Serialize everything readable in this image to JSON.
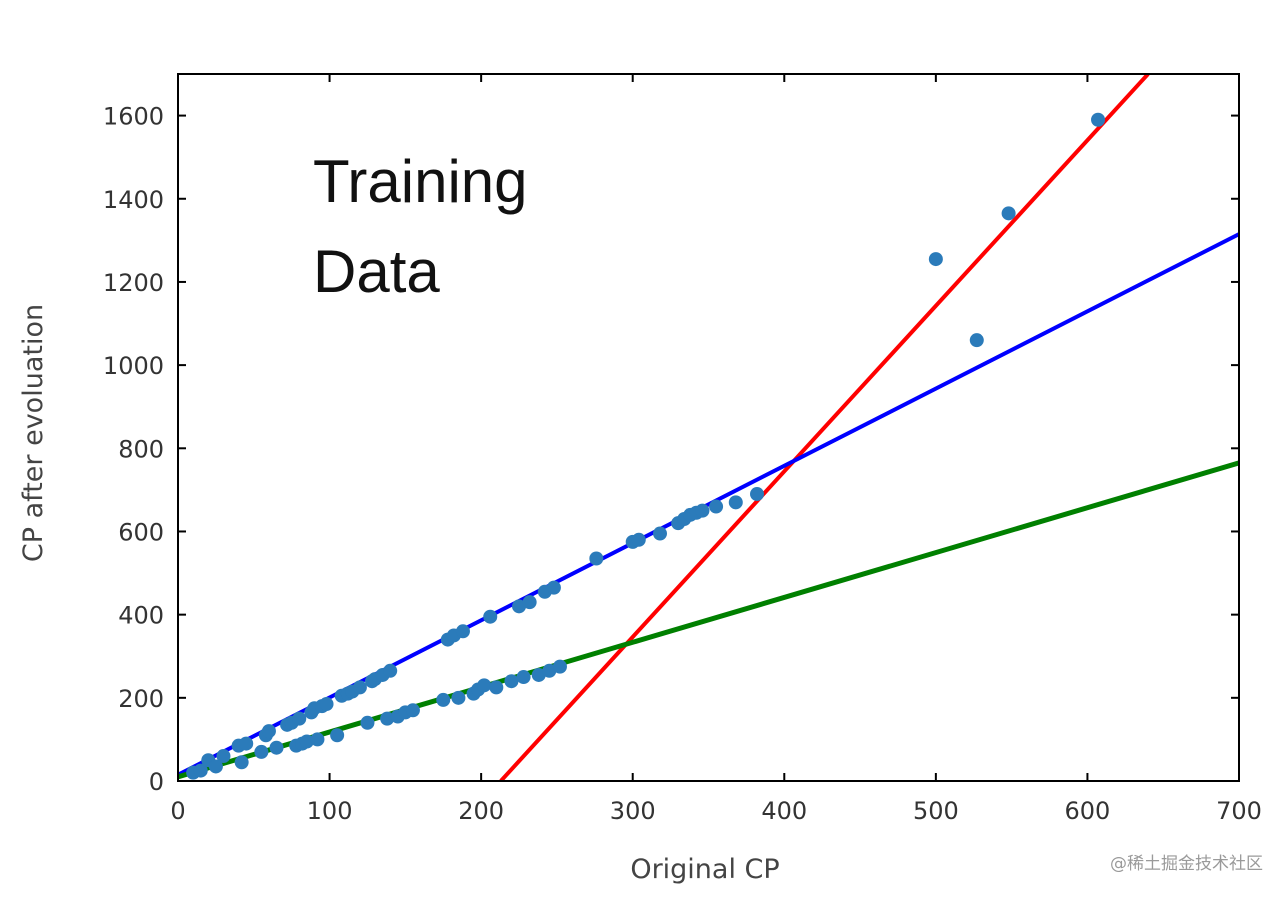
{
  "chart_data": {
    "type": "scatter",
    "title": "",
    "xlabel": "Original CP",
    "ylabel": "CP after evoluation",
    "xlim": [
      0,
      700
    ],
    "ylim": [
      0,
      1700
    ],
    "xticks": [
      0,
      100,
      200,
      300,
      400,
      500,
      600,
      700
    ],
    "yticks": [
      0,
      200,
      400,
      600,
      800,
      1000,
      1200,
      1400,
      1600
    ],
    "grid": false,
    "annotation": [
      "Training",
      "Data"
    ],
    "colors": {
      "points": "#2b7bba",
      "line_red": "#ff0000",
      "line_blue": "#0000ff",
      "line_green": "#008000"
    },
    "points": [
      {
        "x": 10,
        "y": 20
      },
      {
        "x": 15,
        "y": 25
      },
      {
        "x": 20,
        "y": 50
      },
      {
        "x": 25,
        "y": 35
      },
      {
        "x": 30,
        "y": 60
      },
      {
        "x": 40,
        "y": 85
      },
      {
        "x": 42,
        "y": 45
      },
      {
        "x": 45,
        "y": 90
      },
      {
        "x": 55,
        "y": 70
      },
      {
        "x": 58,
        "y": 110
      },
      {
        "x": 60,
        "y": 120
      },
      {
        "x": 65,
        "y": 80
      },
      {
        "x": 72,
        "y": 135
      },
      {
        "x": 75,
        "y": 140
      },
      {
        "x": 78,
        "y": 85
      },
      {
        "x": 80,
        "y": 150
      },
      {
        "x": 82,
        "y": 90
      },
      {
        "x": 85,
        "y": 95
      },
      {
        "x": 88,
        "y": 165
      },
      {
        "x": 90,
        "y": 175
      },
      {
        "x": 92,
        "y": 100
      },
      {
        "x": 95,
        "y": 180
      },
      {
        "x": 98,
        "y": 185
      },
      {
        "x": 105,
        "y": 110
      },
      {
        "x": 108,
        "y": 205
      },
      {
        "x": 112,
        "y": 210
      },
      {
        "x": 115,
        "y": 215
      },
      {
        "x": 120,
        "y": 225
      },
      {
        "x": 125,
        "y": 140
      },
      {
        "x": 128,
        "y": 240
      },
      {
        "x": 130,
        "y": 245
      },
      {
        "x": 135,
        "y": 255
      },
      {
        "x": 138,
        "y": 150
      },
      {
        "x": 140,
        "y": 265
      },
      {
        "x": 145,
        "y": 155
      },
      {
        "x": 150,
        "y": 165
      },
      {
        "x": 155,
        "y": 170
      },
      {
        "x": 175,
        "y": 195
      },
      {
        "x": 178,
        "y": 340
      },
      {
        "x": 182,
        "y": 350
      },
      {
        "x": 185,
        "y": 200
      },
      {
        "x": 188,
        "y": 360
      },
      {
        "x": 195,
        "y": 210
      },
      {
        "x": 198,
        "y": 220
      },
      {
        "x": 202,
        "y": 230
      },
      {
        "x": 206,
        "y": 395
      },
      {
        "x": 210,
        "y": 225
      },
      {
        "x": 220,
        "y": 240
      },
      {
        "x": 225,
        "y": 420
      },
      {
        "x": 228,
        "y": 250
      },
      {
        "x": 232,
        "y": 430
      },
      {
        "x": 238,
        "y": 255
      },
      {
        "x": 242,
        "y": 455
      },
      {
        "x": 245,
        "y": 265
      },
      {
        "x": 248,
        "y": 465
      },
      {
        "x": 252,
        "y": 275
      },
      {
        "x": 276,
        "y": 535
      },
      {
        "x": 300,
        "y": 575
      },
      {
        "x": 304,
        "y": 580
      },
      {
        "x": 318,
        "y": 595
      },
      {
        "x": 330,
        "y": 620
      },
      {
        "x": 334,
        "y": 630
      },
      {
        "x": 338,
        "y": 640
      },
      {
        "x": 342,
        "y": 645
      },
      {
        "x": 346,
        "y": 650
      },
      {
        "x": 355,
        "y": 660
      },
      {
        "x": 368,
        "y": 670
      },
      {
        "x": 382,
        "y": 690
      },
      {
        "x": 500,
        "y": 1255
      },
      {
        "x": 527,
        "y": 1060
      },
      {
        "x": 548,
        "y": 1365
      },
      {
        "x": 607,
        "y": 1590
      }
    ],
    "lines": [
      {
        "color": "line_red",
        "x": [
          213,
          640
        ],
        "y": [
          0,
          1700
        ]
      },
      {
        "color": "line_blue",
        "x": [
          0,
          700
        ],
        "y": [
          15,
          1315
        ]
      },
      {
        "color": "line_green",
        "x": [
          0,
          700
        ],
        "y": [
          10,
          765
        ]
      }
    ]
  },
  "watermark": "@稀土掘金技术社区"
}
